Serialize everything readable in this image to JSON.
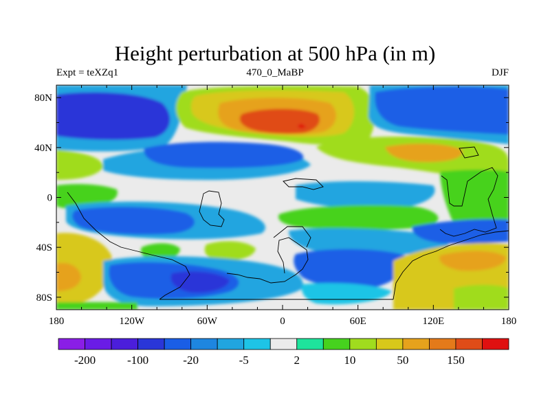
{
  "title": "Height perturbation at 500 hPa (in m)",
  "subtitle_left": "Expt = teXZq1",
  "subtitle_center": "470_0_MaBP",
  "subtitle_right": "DJF",
  "map": {
    "projection": "cylindrical-equidistant",
    "lon_range": [
      -180,
      180
    ],
    "lat_range": [
      -90,
      90
    ],
    "x_ticks": [
      {
        "value": -180,
        "label": "180"
      },
      {
        "value": -120,
        "label": "120W"
      },
      {
        "value": -60,
        "label": "60W"
      },
      {
        "value": 0,
        "label": "0"
      },
      {
        "value": 60,
        "label": "60E"
      },
      {
        "value": 120,
        "label": "120E"
      },
      {
        "value": 180,
        "label": "180"
      }
    ],
    "y_ticks": [
      {
        "value": 80,
        "label": "80N"
      },
      {
        "value": 40,
        "label": "40N"
      },
      {
        "value": 0,
        "label": "0"
      },
      {
        "value": -40,
        "label": "40S"
      },
      {
        "value": -80,
        "label": "80S"
      }
    ],
    "background_color": "#ebebeb",
    "coastline_color": "#000000"
  },
  "colorbar": {
    "colors": [
      "#8a1ee6",
      "#6a1ce6",
      "#4b1edb",
      "#2a36d8",
      "#1a5ee6",
      "#1e86e0",
      "#21a5e0",
      "#1ec4e6",
      "#ebebeb",
      "#1ee39c",
      "#46d21e",
      "#a0dc1e",
      "#d8c81a",
      "#e6a21c",
      "#e47a1a",
      "#e04c18",
      "#e01010"
    ],
    "labels": [
      {
        "index": 1,
        "text": "-200"
      },
      {
        "index": 3,
        "text": "-100"
      },
      {
        "index": 5,
        "text": "-20"
      },
      {
        "index": 7,
        "text": "-5"
      },
      {
        "index": 9,
        "text": "2"
      },
      {
        "index": 11,
        "text": "10"
      },
      {
        "index": 13,
        "text": "50"
      },
      {
        "index": 15,
        "text": "150"
      }
    ]
  }
}
